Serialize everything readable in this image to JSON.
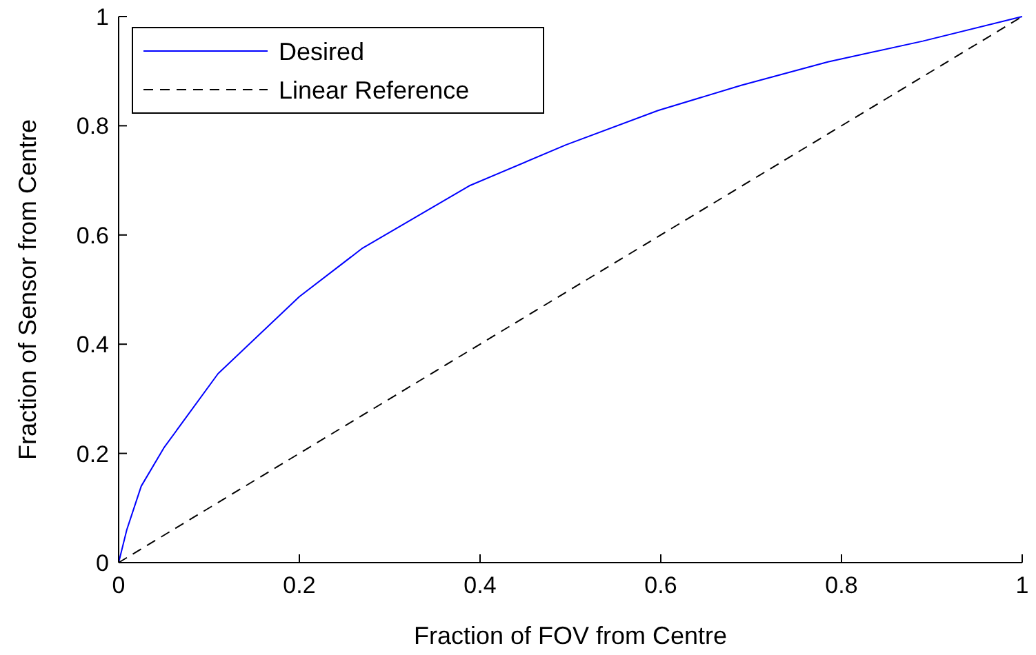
{
  "chart_data": {
    "type": "line",
    "xlabel": "Fraction of FOV from Centre",
    "ylabel": "Fraction of Sensor from Centre",
    "xlim": [
      0,
      1
    ],
    "ylim": [
      0,
      1
    ],
    "xticks": [
      0,
      0.2,
      0.4,
      0.6,
      0.8,
      1
    ],
    "yticks": [
      0,
      0.2,
      0.4,
      0.6,
      0.8,
      1
    ],
    "grid": false,
    "legend": "top left",
    "series": [
      {
        "name": "Desired",
        "color": "#0000ff",
        "line_style": "solid",
        "x": [
          0,
          0.009,
          0.025,
          0.05,
          0.11,
          0.2,
          0.27,
          0.388,
          0.495,
          0.597,
          0.689,
          0.785,
          0.89,
          1
        ],
        "values": [
          0,
          0.06,
          0.14,
          0.21,
          0.346,
          0.487,
          0.576,
          0.69,
          0.765,
          0.828,
          0.874,
          0.917,
          0.955,
          1
        ]
      },
      {
        "name": "Linear Reference",
        "color": "#000000",
        "line_style": "dashed",
        "x": [
          0,
          1
        ],
        "values": [
          0,
          1
        ]
      }
    ]
  }
}
